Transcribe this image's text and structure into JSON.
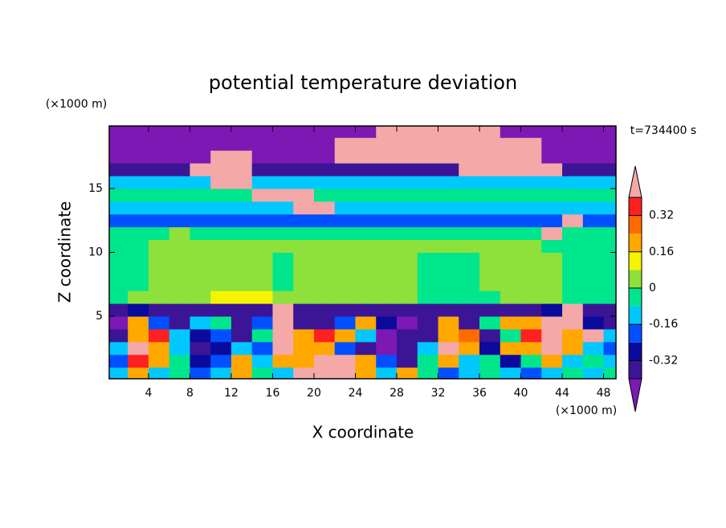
{
  "chart_data": {
    "type": "contour",
    "title": "potential temperature deviation",
    "x_label": "X coordinate",
    "y_label": "Z coordinate",
    "x_unit": "(×1000 m)",
    "y_unit": "(×1000 m)",
    "annotation": "t=734400 s",
    "xlim": [
      0.2,
      49.2
    ],
    "ylim": [
      0.1,
      19.9
    ],
    "xticks": [
      4,
      8,
      12,
      16,
      20,
      24,
      28,
      32,
      36,
      40,
      44,
      48
    ],
    "yticks": [
      5,
      10,
      15
    ],
    "x": [
      1,
      3,
      5,
      7,
      9,
      11,
      13,
      15,
      17,
      19,
      21,
      23,
      25,
      27,
      29,
      31,
      33,
      35,
      37,
      39,
      41,
      43,
      45,
      47,
      49
    ],
    "y": [
      0.5,
      1.5,
      2.5,
      3.5,
      4.5,
      5.5,
      6.5,
      7.5,
      8.5,
      9.5,
      10.5,
      11.5,
      12.5,
      13.5,
      14.5,
      15.5,
      16.5,
      17.5,
      18.5,
      19.5
    ],
    "levels": [
      -0.4,
      -0.32,
      -0.24,
      -0.16,
      -0.08,
      0,
      0.08,
      0.16,
      0.24,
      0.32,
      0.4
    ],
    "colors": [
      "#7c18b4",
      "#3c1496",
      "#0a0a9c",
      "#0050ff",
      "#00c8ff",
      "#00e68c",
      "#8ee03a",
      "#f4f400",
      "#ffa800",
      "#ff6a00",
      "#ff2020",
      "#f4a8a8"
    ],
    "colorbar_ticks": [
      -0.32,
      -0.16,
      0,
      0.16,
      0.32
    ],
    "values": [
      [
        -0.12,
        0.2,
        -0.12,
        -0.04,
        -0.2,
        -0.12,
        0.2,
        -0.04,
        -0.12,
        0.45,
        0.45,
        0.45,
        0.2,
        -0.12,
        0.2,
        -0.04,
        -0.2,
        -0.12,
        -0.04,
        -0.12,
        -0.2,
        -0.12,
        -0.04,
        -0.12,
        -0.04
      ],
      [
        -0.2,
        0.36,
        0.2,
        -0.04,
        -0.28,
        -0.2,
        0.2,
        -0.12,
        0.2,
        0.2,
        0.45,
        0.45,
        0.2,
        -0.2,
        -0.36,
        -0.04,
        0.2,
        -0.12,
        -0.04,
        -0.28,
        -0.04,
        0.2,
        -0.12,
        -0.04,
        -0.12
      ],
      [
        -0.12,
        0.45,
        0.2,
        -0.12,
        -0.36,
        -0.28,
        -0.12,
        -0.2,
        0.45,
        0.2,
        0.2,
        -0.2,
        -0.36,
        -0.45,
        -0.36,
        -0.12,
        0.45,
        0.2,
        -0.28,
        0.2,
        0.2,
        0.45,
        0.2,
        -0.12,
        -0.2
      ],
      [
        -0.36,
        0.2,
        0.36,
        -0.12,
        -0.28,
        -0.2,
        -0.36,
        -0.04,
        0.45,
        0.2,
        0.36,
        0.2,
        -0.12,
        -0.45,
        -0.36,
        -0.36,
        0.2,
        0.28,
        -0.36,
        -0.04,
        0.36,
        0.45,
        0.2,
        0.45,
        -0.12
      ],
      [
        -0.45,
        0.2,
        -0.2,
        -0.36,
        -0.12,
        -0.04,
        -0.36,
        -0.2,
        0.45,
        -0.36,
        -0.36,
        -0.2,
        0.2,
        -0.28,
        -0.45,
        -0.36,
        0.2,
        -0.36,
        -0.04,
        0.2,
        0.2,
        0.45,
        0.45,
        -0.28,
        -0.36
      ],
      [
        -0.36,
        -0.28,
        -0.36,
        -0.36,
        -0.36,
        -0.36,
        -0.36,
        -0.36,
        0.45,
        -0.36,
        -0.36,
        -0.36,
        -0.36,
        -0.36,
        -0.36,
        -0.36,
        -0.36,
        -0.36,
        -0.36,
        -0.36,
        -0.36,
        -0.28,
        0.45,
        -0.36,
        -0.36
      ],
      [
        -0.04,
        0.04,
        0.04,
        0.04,
        0.04,
        0.12,
        0.12,
        0.12,
        0.04,
        0.04,
        0.04,
        0.04,
        0.04,
        0.04,
        0.04,
        -0.04,
        -0.04,
        -0.04,
        -0.04,
        0.04,
        0.04,
        0.04,
        -0.04,
        -0.04,
        -0.04
      ],
      [
        -0.04,
        -0.04,
        0.04,
        0.04,
        0.04,
        0.04,
        0.04,
        0.04,
        -0.04,
        0.04,
        0.04,
        0.04,
        0.04,
        0.04,
        0.04,
        -0.04,
        -0.04,
        -0.04,
        0.04,
        0.04,
        0.04,
        0.04,
        -0.04,
        -0.04,
        -0.04
      ],
      [
        -0.04,
        -0.04,
        0.04,
        0.04,
        0.04,
        0.04,
        0.04,
        0.04,
        -0.04,
        0.04,
        0.04,
        0.04,
        0.04,
        0.04,
        0.04,
        -0.04,
        -0.04,
        -0.04,
        0.04,
        0.04,
        0.04,
        0.04,
        -0.04,
        -0.04,
        -0.04
      ],
      [
        -0.04,
        -0.04,
        0.04,
        0.04,
        0.04,
        0.04,
        0.04,
        0.04,
        -0.04,
        0.04,
        0.04,
        0.04,
        0.04,
        0.04,
        0.04,
        -0.04,
        -0.04,
        -0.04,
        0.04,
        0.04,
        0.04,
        0.04,
        -0.04,
        -0.04,
        -0.04
      ],
      [
        -0.04,
        -0.04,
        0.04,
        0.04,
        0.04,
        0.04,
        0.04,
        0.04,
        0.04,
        0.04,
        0.04,
        0.04,
        0.04,
        0.04,
        0.04,
        0.04,
        0.04,
        0.04,
        0.04,
        0.04,
        0.04,
        -0.04,
        -0.04,
        -0.04,
        -0.04
      ],
      [
        -0.04,
        -0.04,
        -0.04,
        0.04,
        -0.04,
        -0.04,
        -0.04,
        -0.04,
        -0.04,
        -0.04,
        -0.04,
        -0.04,
        -0.04,
        -0.04,
        -0.04,
        -0.04,
        -0.04,
        -0.04,
        -0.04,
        -0.04,
        -0.04,
        0.45,
        -0.04,
        -0.04,
        -0.04
      ],
      [
        -0.2,
        -0.2,
        -0.2,
        -0.2,
        -0.2,
        -0.2,
        -0.2,
        -0.2,
        -0.2,
        -0.2,
        -0.2,
        -0.2,
        -0.2,
        -0.2,
        -0.2,
        -0.2,
        -0.2,
        -0.2,
        -0.2,
        -0.2,
        -0.2,
        -0.2,
        0.45,
        -0.2,
        -0.2
      ],
      [
        -0.12,
        -0.12,
        -0.12,
        -0.12,
        -0.12,
        -0.12,
        -0.12,
        -0.12,
        -0.12,
        0.45,
        0.45,
        -0.12,
        -0.12,
        -0.12,
        -0.12,
        -0.12,
        -0.12,
        -0.12,
        -0.12,
        -0.12,
        -0.12,
        -0.12,
        -0.12,
        -0.12,
        -0.12
      ],
      [
        -0.04,
        -0.04,
        -0.04,
        -0.04,
        -0.04,
        -0.04,
        -0.04,
        0.45,
        0.45,
        0.45,
        -0.04,
        -0.04,
        -0.04,
        -0.04,
        -0.04,
        -0.04,
        -0.04,
        -0.04,
        -0.04,
        -0.04,
        -0.04,
        -0.04,
        -0.04,
        -0.04,
        -0.04
      ],
      [
        -0.12,
        -0.12,
        -0.12,
        -0.12,
        -0.12,
        0.45,
        0.45,
        -0.12,
        -0.12,
        -0.12,
        -0.12,
        -0.12,
        -0.12,
        -0.12,
        -0.12,
        -0.12,
        -0.12,
        -0.12,
        -0.12,
        -0.12,
        -0.12,
        -0.12,
        -0.12,
        -0.12,
        -0.12
      ],
      [
        -0.36,
        -0.36,
        -0.36,
        -0.36,
        0.45,
        0.45,
        0.45,
        -0.36,
        -0.36,
        -0.36,
        -0.36,
        -0.36,
        -0.36,
        -0.36,
        -0.36,
        -0.36,
        -0.36,
        0.45,
        0.45,
        0.45,
        0.45,
        0.45,
        -0.36,
        -0.36,
        -0.36
      ],
      [
        -0.45,
        -0.45,
        -0.45,
        -0.45,
        -0.45,
        0.45,
        0.45,
        -0.45,
        -0.45,
        -0.45,
        -0.45,
        0.45,
        0.45,
        0.45,
        0.45,
        0.45,
        0.45,
        0.45,
        0.45,
        0.45,
        0.45,
        -0.45,
        -0.45,
        -0.45,
        -0.45
      ],
      [
        -0.45,
        -0.45,
        -0.45,
        -0.45,
        -0.45,
        -0.45,
        -0.45,
        -0.45,
        -0.45,
        -0.45,
        -0.45,
        0.45,
        0.45,
        0.45,
        0.45,
        0.45,
        0.45,
        0.45,
        0.45,
        0.45,
        0.45,
        -0.45,
        -0.45,
        -0.45,
        -0.45
      ],
      [
        -0.45,
        -0.45,
        -0.45,
        -0.45,
        -0.45,
        -0.45,
        -0.45,
        -0.45,
        -0.45,
        -0.45,
        -0.45,
        -0.45,
        -0.45,
        0.45,
        0.45,
        0.45,
        0.45,
        0.45,
        0.45,
        -0.45,
        -0.45,
        -0.45,
        -0.45,
        -0.45,
        -0.45
      ]
    ]
  }
}
